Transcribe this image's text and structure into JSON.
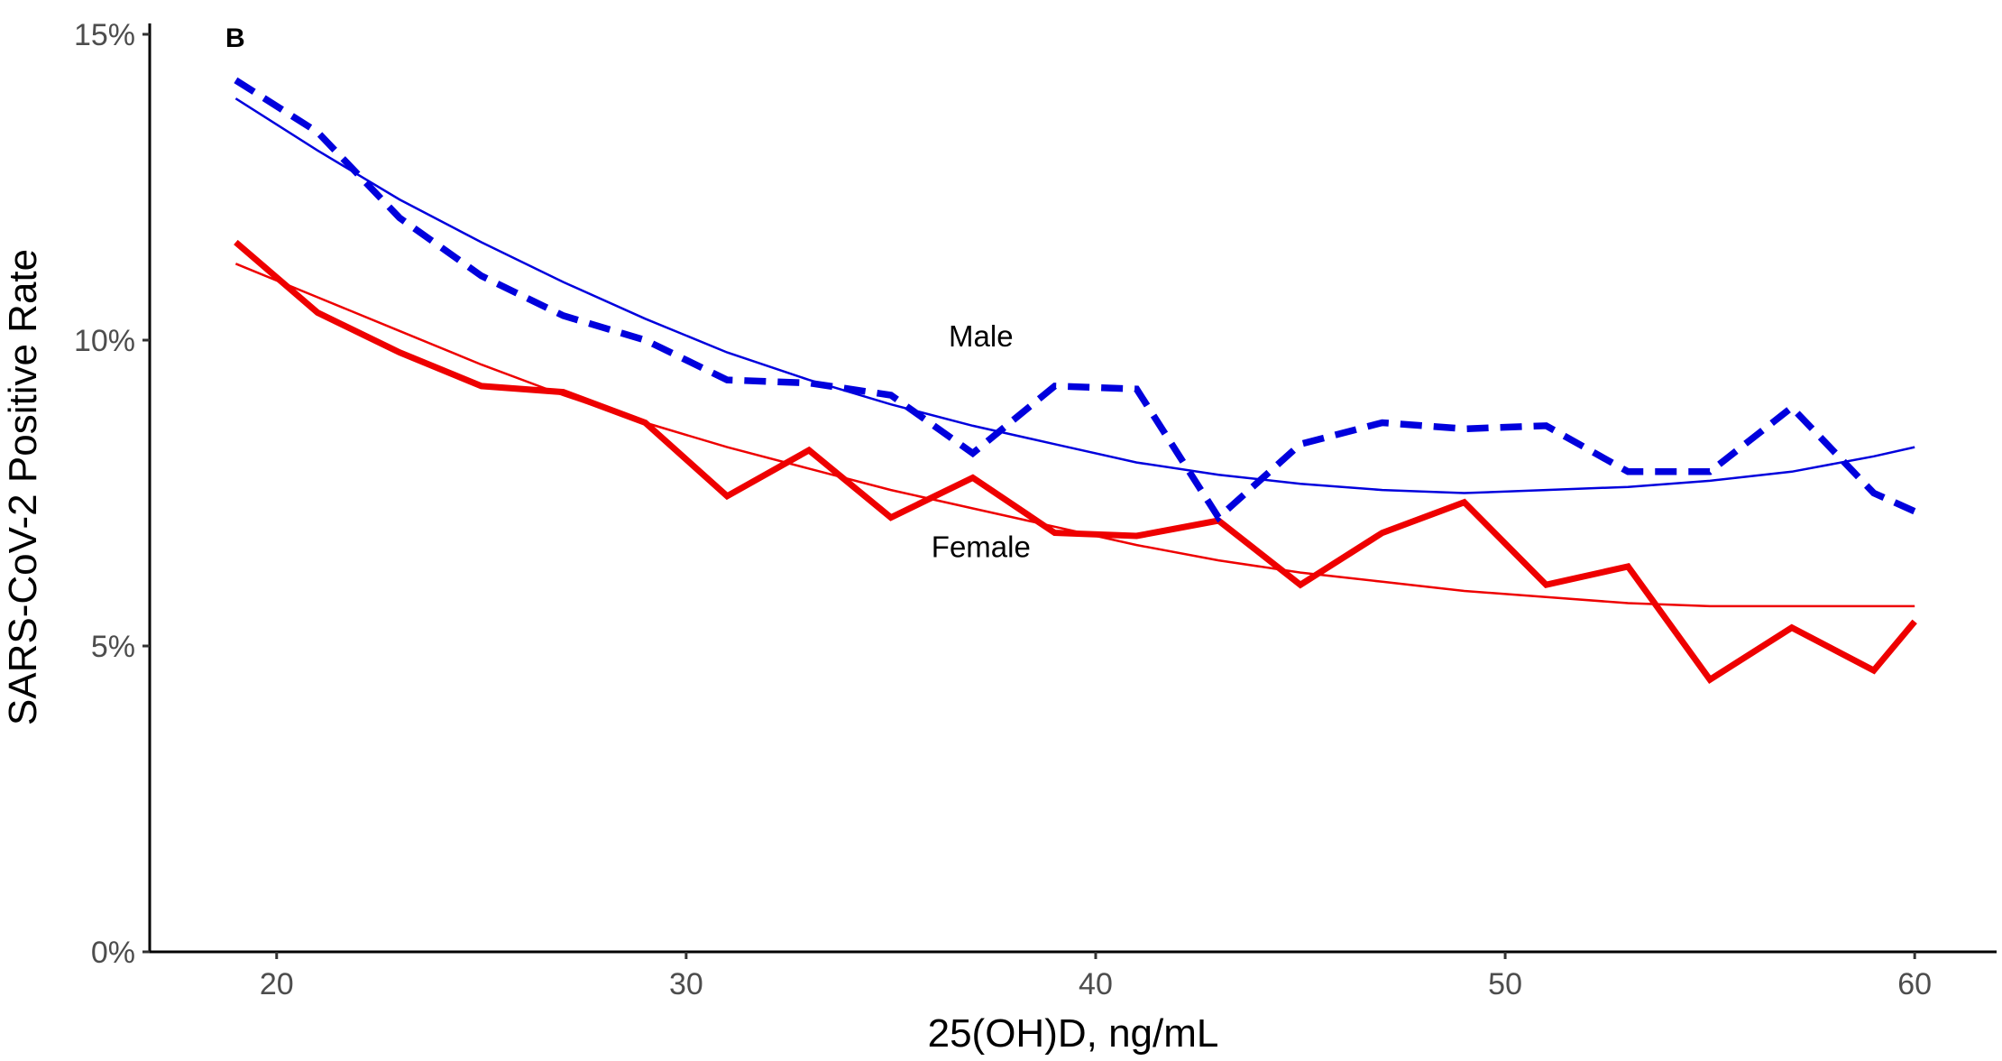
{
  "chart_data": {
    "type": "line",
    "panel_label": "B",
    "xlabel": "25(OH)D, ng/mL",
    "ylabel": "SARS-CoV-2 Positive Rate",
    "xlim": [
      16.9,
      62
    ],
    "ylim": [
      0,
      15
    ],
    "x_ticks": [
      20,
      30,
      40,
      50,
      60
    ],
    "x_tick_labels": [
      "20",
      "30",
      "40",
      "50",
      "60"
    ],
    "y_ticks": [
      0,
      5,
      10,
      15
    ],
    "y_tick_labels": [
      "0%",
      "5%",
      "10%",
      "15%"
    ],
    "grid": false,
    "legend": "none",
    "colors": {
      "male": "#0000dd",
      "female": "#ee0000"
    },
    "series": [
      {
        "name": "Male",
        "style": "dashed-thick",
        "color": "#0000dd",
        "x": [
          19,
          21,
          23,
          25,
          27,
          29,
          31,
          33,
          35,
          37,
          39,
          41,
          43,
          45,
          47,
          49,
          51,
          53,
          55,
          57,
          59,
          60
        ],
        "y": [
          14.25,
          13.4,
          12.0,
          11.05,
          10.4,
          10.0,
          9.35,
          9.3,
          9.1,
          8.15,
          9.25,
          9.2,
          7.1,
          8.3,
          8.65,
          8.55,
          8.6,
          7.85,
          7.85,
          8.9,
          7.5,
          7.2
        ]
      },
      {
        "name": "Female",
        "style": "solid-thick",
        "color": "#ee0000",
        "x": [
          19,
          21,
          23,
          25,
          27,
          29,
          31,
          33,
          35,
          37,
          39,
          41,
          43,
          45,
          47,
          49,
          51,
          53,
          55,
          57,
          59,
          60
        ],
        "y": [
          11.6,
          10.45,
          9.8,
          9.25,
          9.15,
          8.65,
          7.45,
          8.2,
          7.1,
          7.75,
          6.85,
          6.8,
          7.05,
          6.0,
          6.85,
          7.35,
          6.0,
          6.3,
          4.45,
          5.3,
          4.6,
          5.4
        ]
      },
      {
        "name": "",
        "style": "solid-thin",
        "color": "#0000dd",
        "x": [
          19,
          21,
          23,
          25,
          27,
          29,
          31,
          33,
          35,
          37,
          39,
          41,
          43,
          45,
          47,
          49,
          51,
          53,
          55,
          57,
          59,
          60
        ],
        "y": [
          13.95,
          13.1,
          12.3,
          11.6,
          10.95,
          10.35,
          9.8,
          9.35,
          8.95,
          8.6,
          8.3,
          8.0,
          7.8,
          7.65,
          7.55,
          7.5,
          7.55,
          7.6,
          7.7,
          7.85,
          8.1,
          8.25
        ]
      },
      {
        "name": "",
        "style": "solid-thin",
        "color": "#ee0000",
        "x": [
          19,
          21,
          23,
          25,
          27,
          29,
          31,
          33,
          35,
          37,
          39,
          41,
          43,
          45,
          47,
          49,
          51,
          53,
          55,
          57,
          59,
          60
        ],
        "y": [
          11.25,
          10.7,
          10.15,
          9.6,
          9.1,
          8.65,
          8.25,
          7.9,
          7.55,
          7.25,
          6.95,
          6.65,
          6.4,
          6.2,
          6.05,
          5.9,
          5.8,
          5.7,
          5.65,
          5.65,
          5.65,
          5.65
        ]
      }
    ],
    "annotations": [
      {
        "text": "Male",
        "x": 37.2,
        "y": 9.9
      },
      {
        "text": "Female",
        "x": 37.2,
        "y": 6.45
      }
    ]
  }
}
